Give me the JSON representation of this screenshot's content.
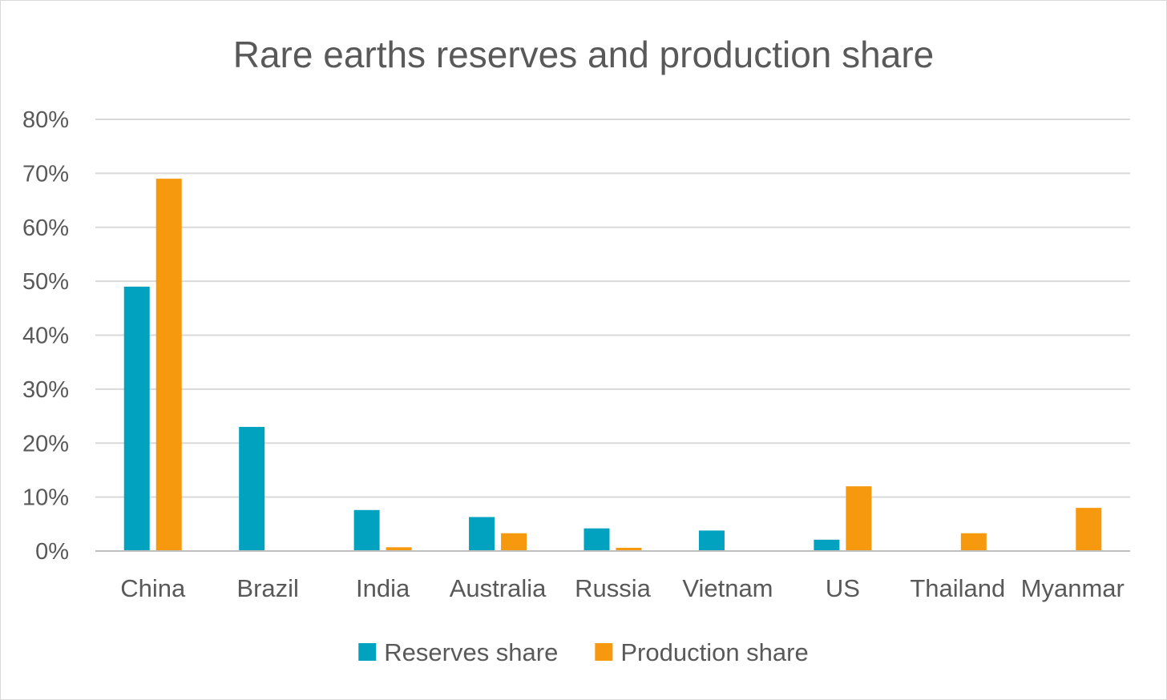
{
  "chart_data": {
    "type": "bar",
    "title": "Rare earths reserves and production share",
    "xlabel": "",
    "ylabel": "",
    "ylim": [
      0,
      80
    ],
    "y_ticks": [
      "0%",
      "10%",
      "20%",
      "30%",
      "40%",
      "50%",
      "60%",
      "70%",
      "80%"
    ],
    "categories": [
      "China",
      "Brazil",
      "India",
      "Australia",
      "Russia",
      "Vietnam",
      "US",
      "Thailand",
      "Myanmar"
    ],
    "series": [
      {
        "name": "Reserves share",
        "color": "#00a2c0",
        "values": [
          49,
          23,
          7.6,
          6.3,
          4.2,
          3.8,
          2.1,
          0,
          0
        ]
      },
      {
        "name": "Production share",
        "color": "#f7990f",
        "values": [
          69,
          0,
          0.7,
          3.3,
          0.6,
          0,
          12,
          3.3,
          8
        ]
      }
    ],
    "grid": true,
    "legend_position": "bottom"
  }
}
